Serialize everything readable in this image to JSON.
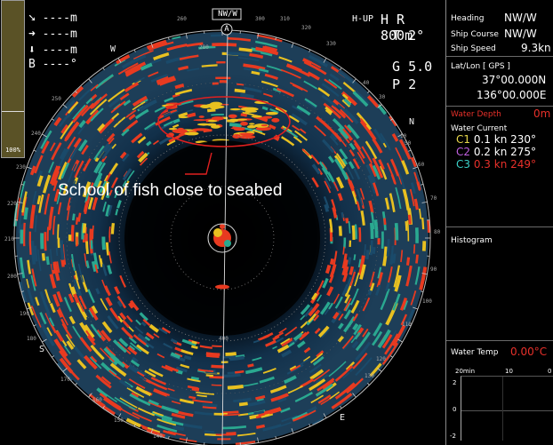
{
  "display": {
    "mode": "H-UP",
    "range_prefix": "H R",
    "range": "800m",
    "tilt_prefix": "T",
    "tilt": "2°",
    "gain_prefix": "G",
    "gain": "5.0",
    "pulse_prefix": "P",
    "pulse": "2",
    "heading_marker": "NW/W",
    "ship_marker": "A",
    "annotation": "School of fish close to seabed"
  },
  "left_readouts": {
    "row1": "----m",
    "row2": "----m",
    "row3": "----m",
    "row4_prefix": "B",
    "row4": "----°",
    "scale_label": "100%"
  },
  "bearing_labels": {
    "n": "N",
    "w": "W",
    "s": "S",
    "e": "E",
    "b260": "260",
    "b280": "280",
    "b300": "300",
    "b310": "310",
    "b320": "320",
    "b330": "330",
    "b250": "250",
    "b240": "240",
    "b230": "230",
    "b220": "220",
    "b210": "210",
    "b200": "200",
    "b190": "190",
    "b180": "180",
    "b170": "170",
    "b160": "160",
    "b150": "150",
    "b140": "140",
    "b130": "130",
    "b120": "120",
    "b110": "110",
    "b100": "100",
    "b90": "90",
    "b80": "80",
    "b70": "70",
    "b60": "60",
    "b50": "50",
    "b40": "40",
    "b30": "30",
    "b10": "10",
    "r400": "400"
  },
  "panel": {
    "heading_label": "Heading",
    "heading_value": "NW/W",
    "course_label": "Ship Course",
    "course_value": "NW/W",
    "speed_label": "Ship Speed",
    "speed_value": "9.3kn",
    "latlon_label": "Lat/Lon",
    "latlon_source": "[ GPS ]",
    "lat": "37°00.000N",
    "lon": "136°00.000E",
    "depth_label": "Water Depth",
    "depth_value": "0m",
    "current_label": "Water Current",
    "c1_name": "C1",
    "c1_speed": "0.1 kn",
    "c1_dir": "230°",
    "c2_name": "C2",
    "c2_speed": "0.2 kn",
    "c2_dir": "275°",
    "c3_name": "C3",
    "c3_speed": "0.3 kn",
    "c3_dir": "249°",
    "histogram_label": "Histogram",
    "temp_label": "Water Temp",
    "temp_value": "0.00°C",
    "temp_axis_x": [
      "20min",
      "10",
      "0"
    ],
    "temp_axis_y": [
      "2",
      "0",
      "-2"
    ]
  },
  "colors": {
    "echo_strong": "#e83a20",
    "echo_medium": "#e8c020",
    "echo_weak": "#2aa890",
    "echo_faint": "#1a4a6a",
    "c1": "#e8d84a",
    "c2": "#c060e0",
    "c3": "#3ad0c8",
    "alert_red": "#e8302a",
    "annotation_ring": "#e02020"
  }
}
